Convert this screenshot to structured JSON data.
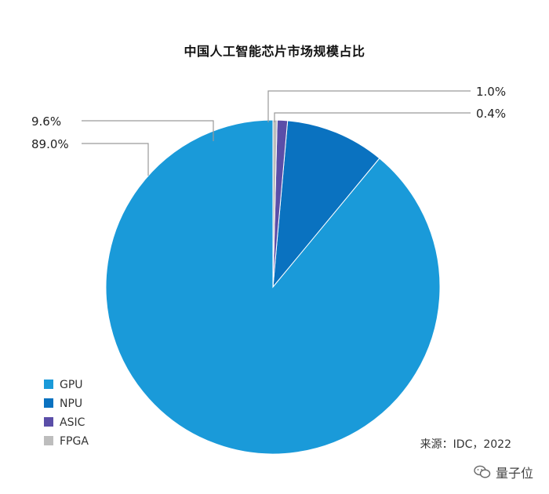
{
  "title": "中国人工智能芯片市场规模占比",
  "source": "来源：IDC，2022",
  "watermark": {
    "text": "量子位",
    "icon": "wechat-icon"
  },
  "chart_data": {
    "type": "pie",
    "title": "中国人工智能芯片市场规模占比",
    "slices": [
      {
        "name": "GPU",
        "value": 89.0,
        "label": "89.0%",
        "color": "#1a9ad9"
      },
      {
        "name": "NPU",
        "value": 9.6,
        "label": "9.6%",
        "color": "#0a72c0"
      },
      {
        "name": "ASIC",
        "value": 1.0,
        "label": "1.0%",
        "color": "#5b4ea8"
      },
      {
        "name": "FPGA",
        "value": 0.4,
        "label": "0.4%",
        "color": "#bdbdbd"
      }
    ],
    "start": "top",
    "direction": "counterclockwise",
    "legend_position": "bottom-left"
  }
}
